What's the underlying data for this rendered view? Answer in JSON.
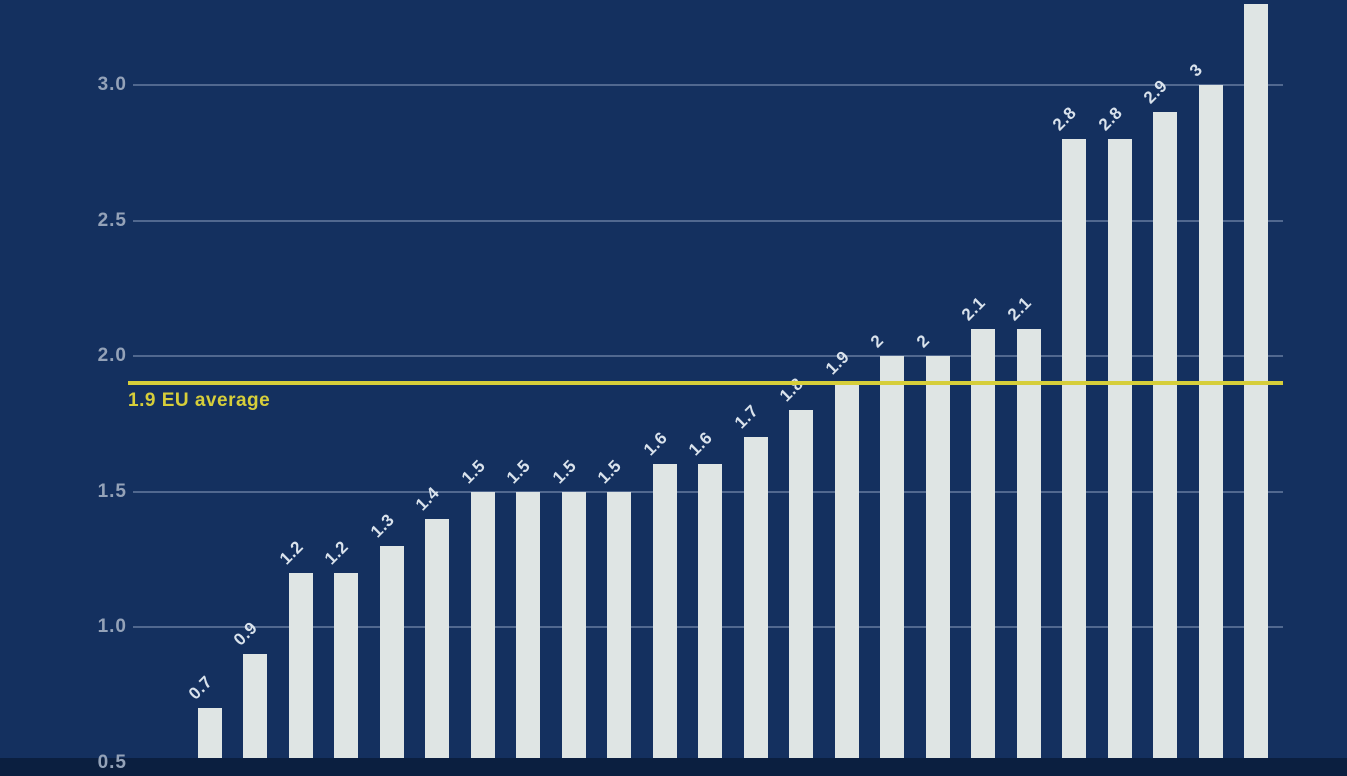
{
  "chart": {
    "colors": {
      "background": "#14305f",
      "bar": "#dfe5e4",
      "gridline": "rgba(173,190,214,0.40)",
      "tick_label": "#94a2b8",
      "bar_label": "#d9e2ec",
      "average": "#d6ce3a"
    }
  },
  "chart_data": {
    "type": "bar",
    "title": "",
    "xlabel": "",
    "ylabel": "",
    "grid": true,
    "ylim_visible": [
      0.52,
      3.31
    ],
    "y_axis": {
      "ticks": [
        {
          "value": 3.0,
          "label": "3.0"
        },
        {
          "value": 2.5,
          "label": "2.5"
        },
        {
          "value": 2.0,
          "label": "2.0"
        },
        {
          "value": 1.5,
          "label": "1.5"
        },
        {
          "value": 1.0,
          "label": "1.0"
        },
        {
          "value": 0.5,
          "label": "0.5"
        }
      ]
    },
    "values": [
      0.7,
      0.9,
      1.2,
      1.2,
      1.3,
      1.4,
      1.5,
      1.5,
      1.5,
      1.5,
      1.6,
      1.6,
      1.7,
      1.8,
      1.9,
      2,
      2,
      2.1,
      2.1,
      2.8,
      2.8,
      2.9,
      3,
      3.3
    ],
    "bar_labels": [
      "0.7",
      "0.9",
      "1.2",
      "1.2",
      "1.3",
      "1.4",
      "1.5",
      "1.5",
      "1.5",
      "1.5",
      "1.6",
      "1.6",
      "1.7",
      "1.8",
      "1.9",
      "2",
      "2",
      "2.1",
      "2.1",
      "2.8",
      "2.8",
      "2.9",
      "3",
      ""
    ],
    "reference_line": {
      "value": 1.9,
      "label": "1.9 EU average"
    }
  }
}
